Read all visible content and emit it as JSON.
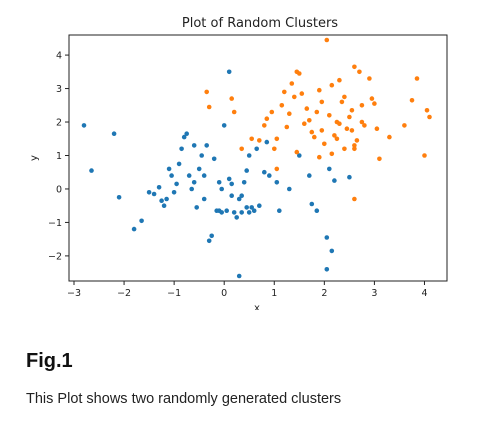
{
  "chart_data": {
    "type": "scatter",
    "title": "Plot of Random Clusters",
    "xlabel": "x",
    "ylabel": "y",
    "xlim": [
      -3.1,
      4.45
    ],
    "ylim": [
      -2.75,
      4.6
    ],
    "xticks": [
      -3,
      -2,
      -1,
      0,
      1,
      2,
      3,
      4
    ],
    "yticks": [
      -2,
      -1,
      0,
      1,
      2,
      3,
      4
    ],
    "xtick_labels": [
      "−3",
      "−2",
      "−1",
      "0",
      "1",
      "2",
      "3",
      "4"
    ],
    "ytick_labels": [
      "−2",
      "−1",
      "0",
      "1",
      "2",
      "3",
      "4"
    ],
    "grid": false,
    "legend": "none",
    "series": [
      {
        "color": "#1f77b4",
        "points": [
          [
            -2.8,
            1.9
          ],
          [
            -2.65,
            0.55
          ],
          [
            -2.2,
            1.65
          ],
          [
            -2.1,
            -0.25
          ],
          [
            -1.8,
            -1.2
          ],
          [
            -1.65,
            -0.95
          ],
          [
            -1.5,
            -0.1
          ],
          [
            -1.4,
            -0.15
          ],
          [
            -1.3,
            0.05
          ],
          [
            -1.25,
            -0.35
          ],
          [
            -1.2,
            -0.5
          ],
          [
            -1.15,
            -0.3
          ],
          [
            -1.1,
            0.6
          ],
          [
            -1.05,
            0.4
          ],
          [
            -1.0,
            -0.1
          ],
          [
            -0.95,
            0.15
          ],
          [
            -0.9,
            0.75
          ],
          [
            -0.85,
            1.2
          ],
          [
            -0.8,
            1.55
          ],
          [
            -0.75,
            1.65
          ],
          [
            -0.7,
            0.4
          ],
          [
            -0.65,
            0.0
          ],
          [
            -0.6,
            0.2
          ],
          [
            -0.55,
            -0.55
          ],
          [
            -0.5,
            0.6
          ],
          [
            -0.45,
            1.0
          ],
          [
            -0.4,
            -0.3
          ],
          [
            -0.35,
            1.3
          ],
          [
            -0.3,
            -1.55
          ],
          [
            -0.25,
            -1.4
          ],
          [
            -0.2,
            0.9
          ],
          [
            -0.15,
            -0.65
          ],
          [
            -0.1,
            0.2
          ],
          [
            -0.05,
            0.0
          ],
          [
            0.0,
            1.9
          ],
          [
            0.05,
            -0.65
          ],
          [
            0.1,
            3.5
          ],
          [
            0.1,
            0.3
          ],
          [
            0.15,
            0.15
          ],
          [
            0.15,
            -0.2
          ],
          [
            0.2,
            -0.7
          ],
          [
            0.25,
            -0.85
          ],
          [
            0.3,
            -2.6
          ],
          [
            0.3,
            -0.3
          ],
          [
            0.35,
            -0.7
          ],
          [
            0.4,
            0.2
          ],
          [
            0.45,
            -0.55
          ],
          [
            0.5,
            1.0
          ],
          [
            0.5,
            -0.7
          ],
          [
            0.55,
            -0.55
          ],
          [
            0.6,
            -0.65
          ],
          [
            0.65,
            1.2
          ],
          [
            0.7,
            -0.5
          ],
          [
            0.8,
            0.5
          ],
          [
            0.85,
            1.4
          ],
          [
            0.9,
            0.4
          ],
          [
            1.05,
            0.2
          ],
          [
            1.1,
            -0.65
          ],
          [
            1.3,
            0.0
          ],
          [
            1.5,
            1.0
          ],
          [
            1.7,
            0.4
          ],
          [
            1.75,
            -0.45
          ],
          [
            1.85,
            -0.65
          ],
          [
            2.05,
            -1.45
          ],
          [
            2.05,
            -2.4
          ],
          [
            2.1,
            0.6
          ],
          [
            2.15,
            -1.85
          ],
          [
            2.2,
            0.25
          ],
          [
            2.5,
            0.35
          ],
          [
            -0.1,
            -0.65
          ],
          [
            0.35,
            -0.2
          ],
          [
            -0.05,
            -0.7
          ],
          [
            0.45,
            0.55
          ],
          [
            -0.4,
            0.4
          ],
          [
            -0.6,
            1.3
          ]
        ]
      },
      {
        "color": "#ff7f0e",
        "points": [
          [
            -0.35,
            2.9
          ],
          [
            -0.3,
            2.45
          ],
          [
            0.15,
            2.7
          ],
          [
            0.2,
            2.3
          ],
          [
            0.35,
            1.2
          ],
          [
            0.55,
            1.5
          ],
          [
            0.7,
            1.45
          ],
          [
            0.8,
            1.9
          ],
          [
            0.85,
            2.1
          ],
          [
            0.95,
            2.3
          ],
          [
            1.0,
            1.2
          ],
          [
            1.05,
            0.6
          ],
          [
            1.05,
            1.5
          ],
          [
            1.15,
            2.5
          ],
          [
            1.2,
            2.9
          ],
          [
            1.25,
            1.85
          ],
          [
            1.3,
            2.25
          ],
          [
            1.35,
            3.15
          ],
          [
            1.4,
            2.75
          ],
          [
            1.45,
            3.5
          ],
          [
            1.5,
            3.45
          ],
          [
            1.55,
            2.85
          ],
          [
            1.6,
            1.95
          ],
          [
            1.65,
            2.4
          ],
          [
            1.7,
            2.05
          ],
          [
            1.75,
            1.7
          ],
          [
            1.8,
            1.55
          ],
          [
            1.85,
            2.3
          ],
          [
            1.9,
            2.95
          ],
          [
            1.9,
            0.95
          ],
          [
            1.95,
            1.75
          ],
          [
            2.0,
            1.35
          ],
          [
            2.05,
            4.45
          ],
          [
            2.1,
            2.2
          ],
          [
            2.15,
            1.05
          ],
          [
            2.15,
            3.1
          ],
          [
            2.2,
            1.6
          ],
          [
            2.25,
            2.0
          ],
          [
            2.3,
            3.25
          ],
          [
            2.35,
            2.6
          ],
          [
            2.4,
            1.2
          ],
          [
            2.45,
            1.8
          ],
          [
            2.5,
            2.15
          ],
          [
            2.55,
            2.35
          ],
          [
            2.6,
            3.65
          ],
          [
            2.6,
            -0.3
          ],
          [
            2.65,
            1.45
          ],
          [
            2.7,
            3.5
          ],
          [
            2.75,
            2.5
          ],
          [
            2.8,
            1.9
          ],
          [
            2.9,
            3.3
          ],
          [
            2.95,
            2.7
          ],
          [
            3.0,
            2.55
          ],
          [
            3.05,
            1.8
          ],
          [
            3.1,
            0.9
          ],
          [
            3.3,
            1.55
          ],
          [
            3.6,
            1.9
          ],
          [
            3.75,
            2.65
          ],
          [
            3.85,
            3.3
          ],
          [
            4.0,
            1.0
          ],
          [
            4.05,
            2.35
          ],
          [
            4.1,
            2.15
          ],
          [
            2.3,
            1.95
          ],
          [
            1.45,
            1.1
          ],
          [
            2.55,
            1.75
          ],
          [
            1.95,
            2.6
          ],
          [
            2.75,
            2.0
          ],
          [
            2.4,
            2.75
          ],
          [
            2.25,
            1.5
          ],
          [
            2.6,
            1.3
          ],
          [
            2.6,
            1.2
          ]
        ]
      }
    ]
  },
  "figure": {
    "label": "Fig.1",
    "caption": "This Plot shows two randomly generated clusters"
  }
}
